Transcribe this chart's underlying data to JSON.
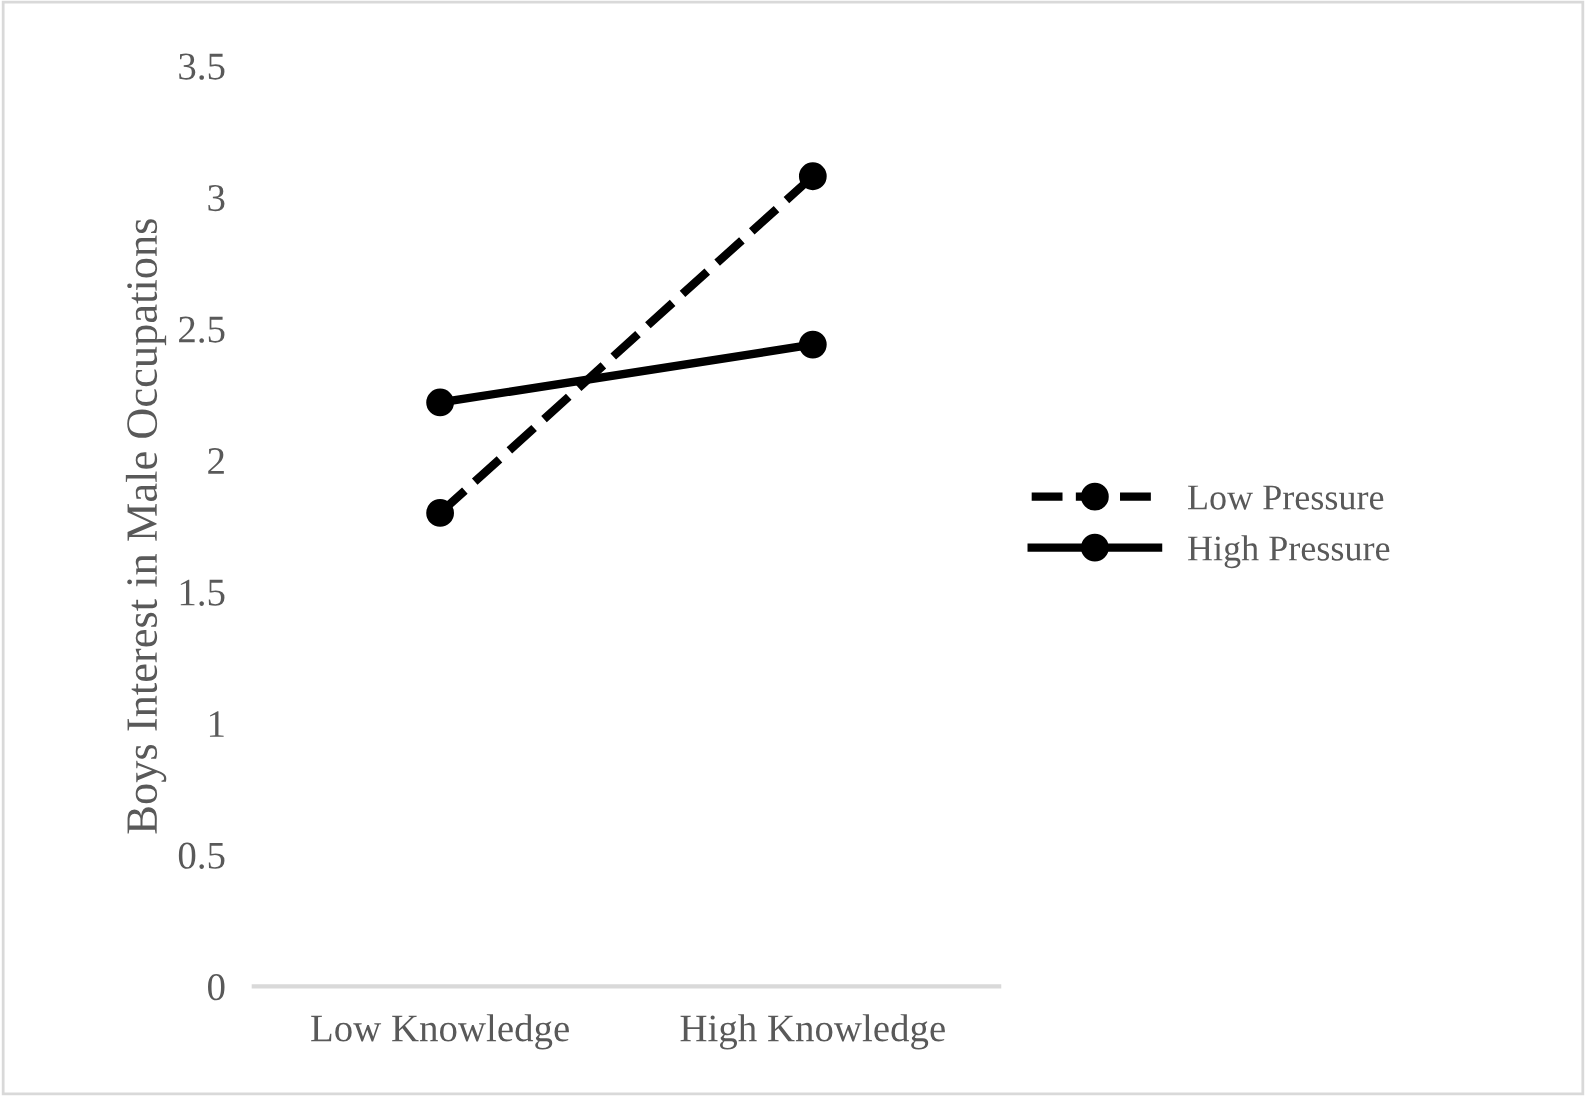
{
  "chart_data": {
    "type": "line",
    "ylabel": "Boys Interest in Male Occupations",
    "categories": [
      "Low Knowledge",
      "High Knowledge"
    ],
    "series": [
      {
        "name": "Low Pressure",
        "color": "#000000",
        "values": [
          1.8,
          3.08
        ],
        "line_style": "dashed"
      },
      {
        "name": "High Pressure",
        "color": "#000000",
        "values": [
          2.22,
          2.44
        ],
        "line_style": "solid"
      }
    ],
    "ylim": [
      0,
      3.5
    ],
    "yticks": [
      0,
      0.5,
      1,
      1.5,
      2,
      2.5,
      3,
      3.5
    ],
    "grid": false,
    "legend": "right",
    "marker": "circle"
  }
}
